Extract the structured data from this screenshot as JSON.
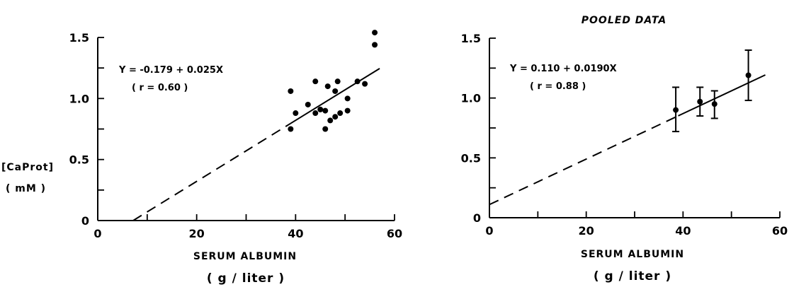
{
  "chart_data": [
    {
      "type": "scatter",
      "title": "",
      "xlabel": "SERUM ALBUMIN",
      "xunit": "( g / liter )",
      "ylabel": "[CaProt]",
      "yunit": "( mM )",
      "xlim": [
        0,
        60
      ],
      "ylim": [
        0,
        1.5
      ],
      "x_ticks": [
        "0",
        "20",
        "40",
        "60"
      ],
      "y_ticks": [
        "0",
        "0.5",
        "1.0",
        "1.5"
      ],
      "grid": false,
      "equation": "Y = -0.179 + 0.025X",
      "r_label": "( r = 0.60 )",
      "fit": {
        "intercept": -0.179,
        "slope": 0.025,
        "dashed_to_x": 39
      },
      "series": [
        {
          "x": [
            39.0,
            39.0,
            40.0,
            42.5,
            44.0,
            44.0,
            45.0,
            46.0,
            46.0,
            46.5,
            47.0,
            48.0,
            48.0,
            48.5,
            49.0,
            50.5,
            50.5,
            52.5,
            54.0,
            56.0,
            56.0
          ],
          "y": [
            0.75,
            1.06,
            0.88,
            0.95,
            0.88,
            1.14,
            0.91,
            0.75,
            0.9,
            1.1,
            0.82,
            0.85,
            1.06,
            1.14,
            0.88,
            0.9,
            1.0,
            1.14,
            1.12,
            1.44,
            1.54
          ]
        }
      ]
    },
    {
      "type": "scatter",
      "title": "POOLED DATA",
      "xlabel": "SERUM ALBUMIN",
      "xunit": "( g / liter )",
      "ylabel": "",
      "xlim": [
        0,
        60
      ],
      "ylim": [
        0,
        1.5
      ],
      "x_ticks": [
        "0",
        "20",
        "40",
        "60"
      ],
      "y_ticks": [
        "0",
        "0.5",
        "1.0",
        "1.5"
      ],
      "grid": false,
      "equation": "Y = 0.110 + 0.0190X",
      "r_label": "( r = 0.88 )",
      "fit": {
        "intercept": 0.11,
        "slope": 0.019,
        "dashed_to_x": 39
      },
      "series": [
        {
          "x": [
            38.5,
            43.5,
            46.5,
            53.5
          ],
          "y": [
            0.9,
            0.97,
            0.95,
            1.19
          ],
          "err_low": [
            0.72,
            0.85,
            0.83,
            0.98
          ],
          "err_high": [
            1.09,
            1.09,
            1.06,
            1.4
          ]
        }
      ]
    }
  ]
}
